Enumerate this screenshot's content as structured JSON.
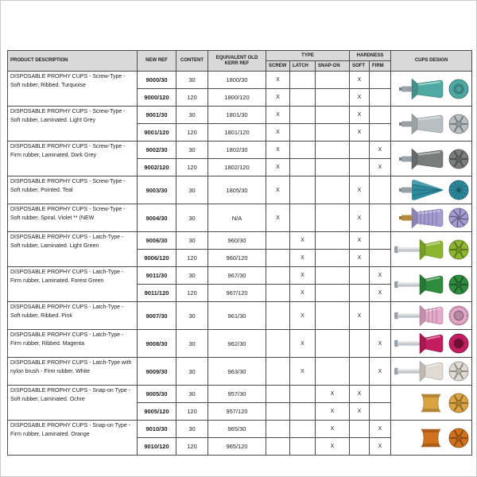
{
  "table": {
    "header": {
      "product_description": "PRODUCT DESCRIPTION",
      "new_ref": "NEW REF",
      "content": "CONTENT",
      "old_kerr": "EQUIVALENT OLD KERR REF",
      "type": "TYPE",
      "screw": "SCREW",
      "latch": "LATCH",
      "snap_on": "SNAP-ON",
      "hardness": "HARDNESS",
      "soft": "SOFT",
      "firm": "FIRM",
      "cups_design": "CUPS DESIGN"
    },
    "groups": [
      {
        "description": "DISPOSABLE PROPHY CUPS -  Screw-Type - Soft rubber, Ribbed. Turquoise",
        "cup": {
          "stem": "screw",
          "shape": "flared",
          "pattern": "ring",
          "color": "#4fa9a2",
          "stem_color": "#9aa0a4"
        },
        "rows": [
          {
            "new_ref": "9000/30",
            "content": "30",
            "old_ref": "1800/30",
            "screw": "X",
            "latch": "",
            "snap_on": "",
            "soft": "X",
            "firm": ""
          },
          {
            "new_ref": "9000/120",
            "content": "120",
            "old_ref": "1800/120",
            "screw": "X",
            "latch": "",
            "snap_on": "",
            "soft": "X",
            "firm": ""
          }
        ]
      },
      {
        "description": "DISPOSABLE PROPHY CUPS -  Screw-Type - Soft rubber, Laminated. Light Grey",
        "cup": {
          "stem": "screw",
          "shape": "flared",
          "pattern": "web",
          "color": "#b7bfc1",
          "stem_color": "#9aa0a4"
        },
        "rows": [
          {
            "new_ref": "9001/30",
            "content": "30",
            "old_ref": "1801/30",
            "screw": "X",
            "latch": "",
            "snap_on": "",
            "soft": "X",
            "firm": ""
          },
          {
            "new_ref": "9001/120",
            "content": "120",
            "old_ref": "1801/120",
            "screw": "X",
            "latch": "",
            "snap_on": "",
            "soft": "X",
            "firm": ""
          }
        ]
      },
      {
        "description": "DISPOSABLE PROPHY CUPS -  Screw-Type - Firm rubber, Laminated. Dark Grey",
        "cup": {
          "stem": "screw",
          "shape": "flared",
          "pattern": "web",
          "color": "#7a7c7c",
          "stem_color": "#9aa0a4"
        },
        "rows": [
          {
            "new_ref": "9002/30",
            "content": "30",
            "old_ref": "1802/30",
            "screw": "X",
            "latch": "",
            "snap_on": "",
            "soft": "",
            "firm": "X"
          },
          {
            "new_ref": "9002/120",
            "content": "120",
            "old_ref": "1802/120",
            "screw": "X",
            "latch": "",
            "snap_on": "",
            "soft": "",
            "firm": "X"
          }
        ]
      },
      {
        "description": "DISPOSABLE PROPHY CUPS -  Screw-Type - Soft rubber, Pointed. Teal",
        "cup": {
          "stem": "screw",
          "shape": "cone",
          "pattern": "radial",
          "color": "#2d8b9e",
          "stem_color": "#9aa0a4"
        },
        "rows": [
          {
            "new_ref": "9003/30",
            "content": "30",
            "old_ref": "1805/30",
            "screw": "X",
            "latch": "",
            "snap_on": "",
            "soft": "X",
            "firm": ""
          }
        ]
      },
      {
        "description": "DISPOSABLE PROPHY CUPS -  Screw-Type - Soft rubber, Spiral. Violet   ** (NEW",
        "cup": {
          "stem": "screw",
          "shape": "ribbed",
          "pattern": "spiral",
          "color": "#a59bd3",
          "stem_color": "#b58c3e"
        },
        "rows": [
          {
            "new_ref": "9004/30",
            "content": "30",
            "old_ref": "N/A",
            "screw": "X",
            "latch": "",
            "snap_on": "",
            "soft": "X",
            "firm": ""
          }
        ]
      },
      {
        "description": "DISPOSABLE PROPHY CUPS -  Latch-Type - Soft rubber, Laminated. Light Green",
        "cup": {
          "stem": "latch",
          "shape": "cyl",
          "pattern": "web",
          "color": "#8cb62f",
          "stem_color": "#c3c8cc"
        },
        "rows": [
          {
            "new_ref": "9006/30",
            "content": "30",
            "old_ref": "960/30",
            "screw": "",
            "latch": "X",
            "snap_on": "",
            "soft": "X",
            "firm": ""
          },
          {
            "new_ref": "9006/120",
            "content": "120",
            "old_ref": "960/120",
            "screw": "",
            "latch": "X",
            "snap_on": "",
            "soft": "X",
            "firm": ""
          }
        ]
      },
      {
        "description": "DISPOSABLE PROPHY CUPS -  Latch-Type - Firm rubber, Laminated. Forest Green",
        "cup": {
          "stem": "latch",
          "shape": "cyl",
          "pattern": "web",
          "color": "#2f8c3f",
          "stem_color": "#c3c8cc"
        },
        "rows": [
          {
            "new_ref": "9011/30",
            "content": "30",
            "old_ref": "967/30",
            "screw": "",
            "latch": "X",
            "snap_on": "",
            "soft": "",
            "firm": "X"
          },
          {
            "new_ref": "9011/120",
            "content": "120",
            "old_ref": "967/120",
            "screw": "",
            "latch": "X",
            "snap_on": "",
            "soft": "",
            "firm": "X"
          }
        ]
      },
      {
        "description": "DISPOSABLE PROPHY CUPS -  Latch-Type - Soft rubber, Ribbed. Pink",
        "cup": {
          "stem": "latch",
          "shape": "ribbed",
          "pattern": "scallop",
          "color": "#e5a9c9",
          "stem_color": "#c3c8cc"
        },
        "rows": [
          {
            "new_ref": "9007/30",
            "content": "30",
            "old_ref": "961/30",
            "screw": "",
            "latch": "X",
            "snap_on": "",
            "soft": "X",
            "firm": ""
          }
        ]
      },
      {
        "description": "DISPOSABLE PROPHY CUPS -  Latch-Type - Firm rubber, Ribbed. Magenta",
        "cup": {
          "stem": "latch",
          "shape": "cyl",
          "pattern": "solid",
          "color": "#c01e5e",
          "stem_color": "#c3c8cc"
        },
        "rows": [
          {
            "new_ref": "9008/30",
            "content": "30",
            "old_ref": "962/30",
            "screw": "",
            "latch": "X",
            "snap_on": "",
            "soft": "",
            "firm": "X"
          }
        ]
      },
      {
        "description": "DISPOSABLE PROPHY CUPS -  Latch-Type with nylon brush - Firm rubber. White",
        "cup": {
          "stem": "latch",
          "shape": "cyl",
          "pattern": "web",
          "color": "#dfdbd3",
          "stem_color": "#c3c8cc"
        },
        "rows": [
          {
            "new_ref": "9009/30",
            "content": "30",
            "old_ref": "963/30",
            "screw": "",
            "latch": "X",
            "snap_on": "",
            "soft": "",
            "firm": "X"
          }
        ]
      },
      {
        "description": "DISPOSABLE PROPHY CUPS -  Snap-on Type - Soft rubber, Laminated. Ochre",
        "cup": {
          "stem": "none",
          "shape": "hourglass",
          "pattern": "web",
          "color": "#d9a440"
        },
        "rows": [
          {
            "new_ref": "9005/30",
            "content": "30",
            "old_ref": "957/30",
            "screw": "",
            "latch": "",
            "snap_on": "X",
            "soft": "X",
            "firm": ""
          },
          {
            "new_ref": "9005/120",
            "content": "120",
            "old_ref": "957/120",
            "screw": "",
            "latch": "",
            "snap_on": "X",
            "soft": "X",
            "firm": ""
          }
        ]
      },
      {
        "description": "DISPOSABLE PROPHY CUPS -  Snap-on Type - Firm rubber, Laminated. Orange",
        "cup": {
          "stem": "none",
          "shape": "hourglass",
          "pattern": "web",
          "color": "#d2711c"
        },
        "rows": [
          {
            "new_ref": "9010/30",
            "content": "30",
            "old_ref": "965/30",
            "screw": "",
            "latch": "",
            "snap_on": "X",
            "soft": "",
            "firm": "X"
          },
          {
            "new_ref": "9010/120",
            "content": "120",
            "old_ref": "965/120",
            "screw": "",
            "latch": "",
            "snap_on": "X",
            "soft": "",
            "firm": "X"
          }
        ]
      }
    ]
  }
}
